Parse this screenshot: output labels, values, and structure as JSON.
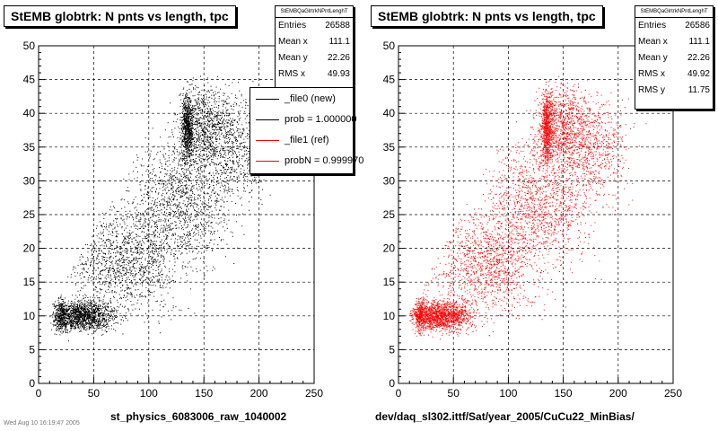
{
  "chart_data": [
    {
      "type": "scatter",
      "title": "StEMB globtrk: N pnts vs length, tpc",
      "xlabel": "st_physics_6083006_raw_1040002",
      "ylabel": "",
      "xlim": [
        0,
        250
      ],
      "ylim": [
        0,
        50
      ],
      "x_ticks": [
        0,
        50,
        100,
        150,
        200,
        250
      ],
      "y_ticks": [
        0,
        5,
        10,
        15,
        20,
        25,
        30,
        35,
        40,
        45,
        50
      ],
      "grid": true,
      "point_color": "#000000",
      "stats": {
        "name": "StEMBQaGlrtrkNPntLenghT",
        "rows": [
          {
            "label": "Entries",
            "value": "26588"
          },
          {
            "label": "Mean x",
            "value": "111.1"
          },
          {
            "label": "Mean y",
            "value": "22.26"
          },
          {
            "label": "RMS x",
            "value": "49.93"
          }
        ]
      },
      "legend": {
        "placement": "top-right",
        "entries": [
          {
            "label": "_file0 (new)",
            "color": "#000000"
          },
          {
            "label": "prob = 1.000000",
            "color": "#000000"
          },
          {
            "label": "_file1 (ref)",
            "color": "#ff0000"
          },
          {
            "label": "probN = 0.999970",
            "color": "#ff0000"
          }
        ]
      }
    },
    {
      "type": "scatter",
      "title": "StEMB globtrk: N pnts vs length, tpc",
      "xlabel": "dev/daq_sl302.ittf/Sat/year_2005/CuCu22_MinBias/",
      "ylabel": "",
      "xlim": [
        0,
        250
      ],
      "ylim": [
        0,
        50
      ],
      "x_ticks": [
        0,
        50,
        100,
        150,
        200,
        250
      ],
      "y_ticks": [
        0,
        5,
        10,
        15,
        20,
        25,
        30,
        35,
        40,
        45,
        50
      ],
      "grid": true,
      "point_color": "#ff0000",
      "stats": {
        "name": "StEMBQaGlrtrkNPntLenghT",
        "rows": [
          {
            "label": "Entries",
            "value": "26586"
          },
          {
            "label": "Mean x",
            "value": "111.1"
          },
          {
            "label": "Mean y",
            "value": "22.26"
          },
          {
            "label": "RMS x",
            "value": "49.92"
          },
          {
            "label": "RMS y",
            "value": "11.75"
          }
        ]
      }
    }
  ],
  "footer": "Wed Aug 10 16:19:47 2005"
}
